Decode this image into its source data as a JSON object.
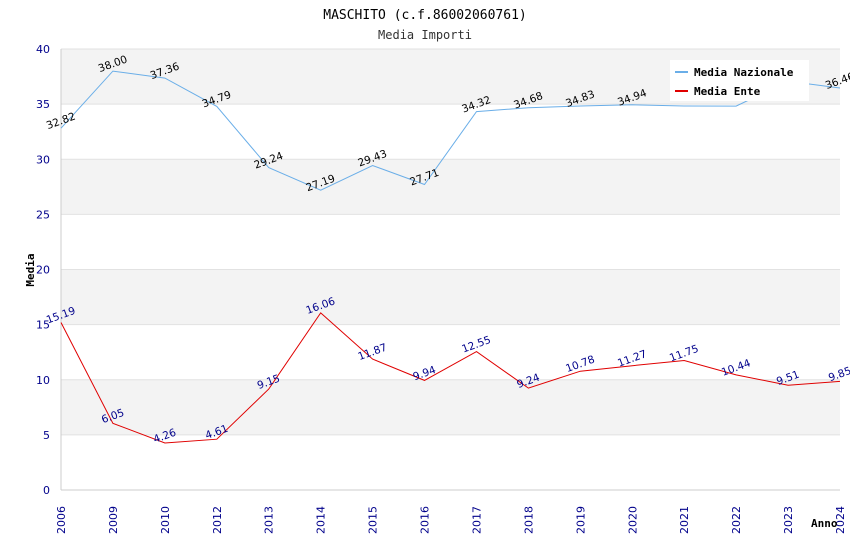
{
  "chart_data": {
    "type": "line",
    "title": "MASCHITO (c.f.86002060761)",
    "subtitle": "Media Importi",
    "xlabel": "Anno",
    "ylabel": "Media",
    "ylim": [
      0,
      40
    ],
    "yticks": [
      0,
      5,
      10,
      15,
      20,
      25,
      30,
      35,
      40
    ],
    "categories": [
      "2006",
      "2009",
      "2010",
      "2012",
      "2013",
      "2014",
      "2015",
      "2016",
      "2017",
      "2018",
      "2019",
      "2020",
      "2021",
      "2022",
      "2023",
      "2024"
    ],
    "series": [
      {
        "name": "Media Nazionale",
        "color": "#6aaee8",
        "values": [
          32.82,
          38.0,
          37.36,
          34.79,
          29.24,
          27.19,
          29.43,
          27.71,
          34.32,
          34.68,
          34.83,
          34.94,
          34.83,
          34.82,
          37.07,
          36.46
        ],
        "labels": [
          "32.82",
          "38.00",
          "37.36",
          "34.79",
          "29.24",
          "27.19",
          "29.43",
          "27.71",
          "34.32",
          "34.68",
          "34.83",
          "34.94",
          "",
          "",
          "",
          "36.46"
        ]
      },
      {
        "name": "Media Ente",
        "color": "#e00000",
        "values": [
          15.19,
          6.05,
          4.26,
          4.61,
          9.15,
          16.06,
          11.87,
          9.94,
          12.55,
          9.24,
          10.78,
          11.27,
          11.75,
          10.44,
          9.51,
          9.85
        ],
        "labels": [
          "15.19",
          "6.05",
          "4.26",
          "4.61",
          "9.15",
          "16.06",
          "11.87",
          "9.94",
          "12.55",
          "9.24",
          "10.78",
          "11.27",
          "11.75",
          "10.44",
          "9.51",
          "9.85"
        ]
      }
    ],
    "legend_position": "top-right",
    "grid": true
  }
}
